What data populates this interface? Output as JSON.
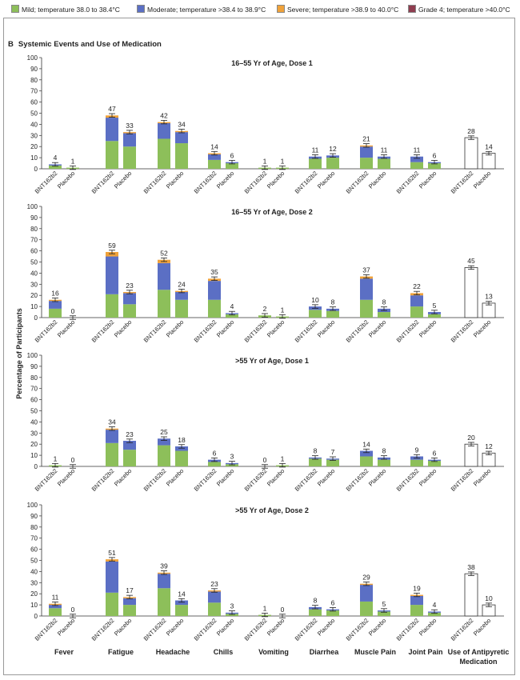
{
  "legend": [
    {
      "label": "Mild; temperature 38.0 to 38.4°C",
      "color": "#8dbf5a"
    },
    {
      "label": "Moderate; temperature >38.4 to 38.9°C",
      "color": "#5b6fc4"
    },
    {
      "label": "Severe; temperature >38.9 to 40.0°C",
      "color": "#f0a23a"
    },
    {
      "label": "Grade 4; temperature >40.0°C",
      "color": "#8f3d4f"
    }
  ],
  "section": {
    "letter": "B",
    "title": "Systemic Events and Use of Medication"
  },
  "ylabel": "Percentage of Participants",
  "categories": [
    "Fever",
    "Fatigue",
    "Headache",
    "Chills",
    "Vomiting",
    "Diarrhea",
    "Muscle Pain",
    "Joint Pain",
    "Use of Antipyretic Medication"
  ],
  "chart_data": [
    {
      "type": "bar",
      "title": "16–55 Yr of Age, Dose 1",
      "ylim": [
        0,
        100
      ],
      "yticks": [
        0,
        10,
        20,
        30,
        40,
        50,
        60,
        70,
        80,
        90,
        100
      ],
      "groups": [
        "BNT162b2",
        "Placebo"
      ],
      "series_names": [
        "Mild",
        "Moderate",
        "Severe",
        "Grade 4"
      ],
      "totals": {
        "BNT162b2": [
          4,
          47,
          42,
          14,
          1,
          11,
          21,
          11,
          28
        ],
        "Placebo": [
          1,
          33,
          34,
          6,
          1,
          12,
          11,
          6,
          14
        ]
      },
      "stacks": {
        "BNT162b2": [
          [
            3,
            1,
            0,
            0
          ],
          [
            25,
            21,
            2,
            0
          ],
          [
            27,
            14,
            1,
            0
          ],
          [
            8,
            5,
            1,
            0
          ],
          [
            1,
            0,
            0,
            0
          ],
          [
            9,
            2,
            0,
            0
          ],
          [
            10,
            10,
            1,
            0
          ],
          [
            6,
            5,
            0,
            0
          ]
        ],
        "Placebo": [
          [
            1,
            0,
            0,
            0
          ],
          [
            20,
            12,
            1,
            0
          ],
          [
            23,
            10,
            1,
            0
          ],
          [
            5,
            1,
            0,
            0
          ],
          [
            1,
            0,
            0,
            0
          ],
          [
            10,
            2,
            0,
            0
          ],
          [
            9,
            2,
            0,
            0
          ],
          [
            5,
            1,
            0,
            0
          ]
        ]
      }
    },
    {
      "type": "bar",
      "title": "16–55 Yr of Age, Dose 2",
      "ylim": [
        0,
        100
      ],
      "yticks": [
        0,
        10,
        20,
        30,
        40,
        50,
        60,
        70,
        80,
        90,
        100
      ],
      "groups": [
        "BNT162b2",
        "Placebo"
      ],
      "series_names": [
        "Mild",
        "Moderate",
        "Severe",
        "Grade 4"
      ],
      "totals": {
        "BNT162b2": [
          16,
          59,
          52,
          35,
          2,
          10,
          37,
          22,
          45
        ],
        "Placebo": [
          0,
          23,
          24,
          4,
          1,
          8,
          8,
          5,
          13
        ]
      },
      "stacks": {
        "BNT162b2": [
          [
            8,
            7,
            1,
            0
          ],
          [
            21,
            34,
            4,
            0
          ],
          [
            25,
            24,
            3,
            0
          ],
          [
            16,
            17,
            2,
            0
          ],
          [
            2,
            0,
            0,
            0
          ],
          [
            7,
            3,
            0,
            0
          ],
          [
            16,
            19,
            2,
            0
          ],
          [
            10,
            10,
            2,
            0
          ]
        ],
        "Placebo": [
          [
            0,
            0,
            0,
            0
          ],
          [
            12,
            10,
            1,
            0
          ],
          [
            16,
            7,
            1,
            0
          ],
          [
            3,
            1,
            0,
            0
          ],
          [
            1,
            0,
            0,
            0
          ],
          [
            6,
            2,
            0,
            0
          ],
          [
            5,
            3,
            0,
            0
          ],
          [
            3,
            2,
            0,
            0
          ]
        ]
      }
    },
    {
      "type": "bar",
      "title": ">55 Yr of Age, Dose 1",
      "ylim": [
        0,
        100
      ],
      "yticks": [
        0,
        10,
        20,
        30,
        40,
        50,
        60,
        70,
        80,
        90,
        100
      ],
      "groups": [
        "BNT162b2",
        "Placebo"
      ],
      "series_names": [
        "Mild",
        "Moderate",
        "Severe",
        "Grade 4"
      ],
      "totals": {
        "BNT162b2": [
          1,
          34,
          25,
          6,
          0,
          8,
          14,
          9,
          20
        ],
        "Placebo": [
          0,
          23,
          18,
          3,
          1,
          7,
          8,
          6,
          12
        ]
      },
      "stacks": {
        "BNT162b2": [
          [
            1,
            0,
            0,
            0
          ],
          [
            21,
            12,
            1,
            0
          ],
          [
            19,
            6,
            0,
            0
          ],
          [
            4,
            2,
            0,
            0
          ],
          [
            0,
            0,
            0,
            0
          ],
          [
            7,
            1,
            0,
            0
          ],
          [
            9,
            5,
            0,
            0
          ],
          [
            6,
            3,
            0,
            0
          ]
        ],
        "Placebo": [
          [
            0,
            0,
            0,
            0
          ],
          [
            15,
            8,
            0,
            0
          ],
          [
            14,
            4,
            0,
            0
          ],
          [
            2,
            1,
            0,
            0
          ],
          [
            1,
            0,
            0,
            0
          ],
          [
            6,
            1,
            0,
            0
          ],
          [
            6,
            2,
            0,
            0
          ],
          [
            5,
            1,
            0,
            0
          ]
        ]
      }
    },
    {
      "type": "bar",
      "title": ">55 Yr of Age, Dose 2",
      "ylim": [
        0,
        100
      ],
      "yticks": [
        0,
        10,
        20,
        30,
        40,
        50,
        60,
        70,
        80,
        90,
        100
      ],
      "groups": [
        "BNT162b2",
        "Placebo"
      ],
      "series_names": [
        "Mild",
        "Moderate",
        "Severe",
        "Grade 4"
      ],
      "totals": {
        "BNT162b2": [
          11,
          51,
          39,
          23,
          1,
          8,
          29,
          19,
          38
        ],
        "Placebo": [
          0,
          17,
          14,
          3,
          0,
          6,
          5,
          4,
          10
        ]
      },
      "stacks": {
        "BNT162b2": [
          [
            7,
            3,
            1,
            0
          ],
          [
            21,
            28,
            2,
            0
          ],
          [
            25,
            13,
            1,
            0
          ],
          [
            12,
            10,
            1,
            0
          ],
          [
            1,
            0,
            0,
            0
          ],
          [
            6,
            2,
            0,
            0
          ],
          [
            13,
            15,
            1,
            0
          ],
          [
            10,
            8,
            1,
            0
          ]
        ],
        "Placebo": [
          [
            0,
            0,
            0,
            0
          ],
          [
            10,
            6,
            1,
            0
          ],
          [
            10,
            4,
            0,
            0
          ],
          [
            2,
            1,
            0,
            0
          ],
          [
            0,
            0,
            0,
            0
          ],
          [
            5,
            1,
            0,
            0
          ],
          [
            4,
            1,
            0,
            0
          ],
          [
            3,
            1,
            0,
            0
          ]
        ]
      }
    }
  ]
}
